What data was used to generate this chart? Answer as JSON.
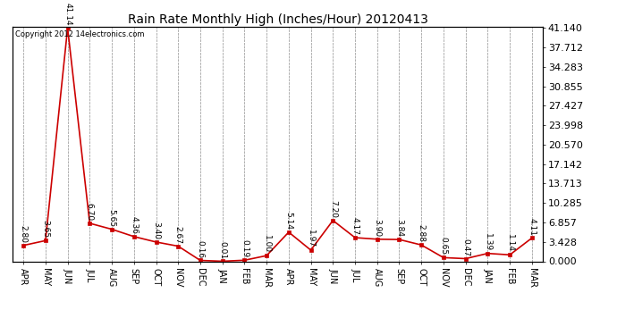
{
  "title": "Rain Rate Monthly High (Inches/Hour) 20120413",
  "copyright": "Copyright 2012 14electronics.com",
  "x_labels": [
    "APR",
    "MAY",
    "JUN",
    "JUL",
    "AUG",
    "SEP",
    "OCT",
    "NOV",
    "DEC",
    "JAN",
    "FEB",
    "MAR",
    "APR",
    "MAY",
    "JUN",
    "JUL",
    "AUG",
    "SEP",
    "OCT",
    "NOV",
    "DEC",
    "JAN",
    "FEB",
    "MAR"
  ],
  "y_values": [
    2.8,
    3.65,
    41.14,
    6.7,
    5.65,
    4.36,
    3.4,
    2.67,
    0.16,
    0.01,
    0.19,
    1.0,
    5.14,
    1.97,
    7.2,
    4.17,
    3.9,
    3.84,
    2.88,
    0.65,
    0.47,
    1.39,
    1.14,
    4.11
  ],
  "data_labels": [
    "2.80",
    "3.65",
    "41.14",
    "6.70",
    "5.65",
    "4.36",
    "3.40",
    "2.67",
    "0.16",
    "0.01",
    "0.19",
    "1.00",
    "5.14",
    "1.97",
    "7.20",
    "4.17",
    "3.90",
    "3.84",
    "2.88",
    "0.65",
    "0.47",
    "1.39",
    "1.14",
    "4.11"
  ],
  "y_right_ticks": [
    0.0,
    3.428,
    6.857,
    10.285,
    13.713,
    17.142,
    20.57,
    23.998,
    27.427,
    30.855,
    34.283,
    37.712,
    41.14
  ],
  "line_color": "#cc0000",
  "marker_color": "#cc0000",
  "bg_color": "#ffffff",
  "grid_color": "#aaaaaa",
  "title_fontsize": 10,
  "ylabel_fontsize": 8,
  "xlabel_fontsize": 7,
  "annotation_fontsize": 6.5,
  "ymax": 41.14,
  "ymin": 0.0
}
